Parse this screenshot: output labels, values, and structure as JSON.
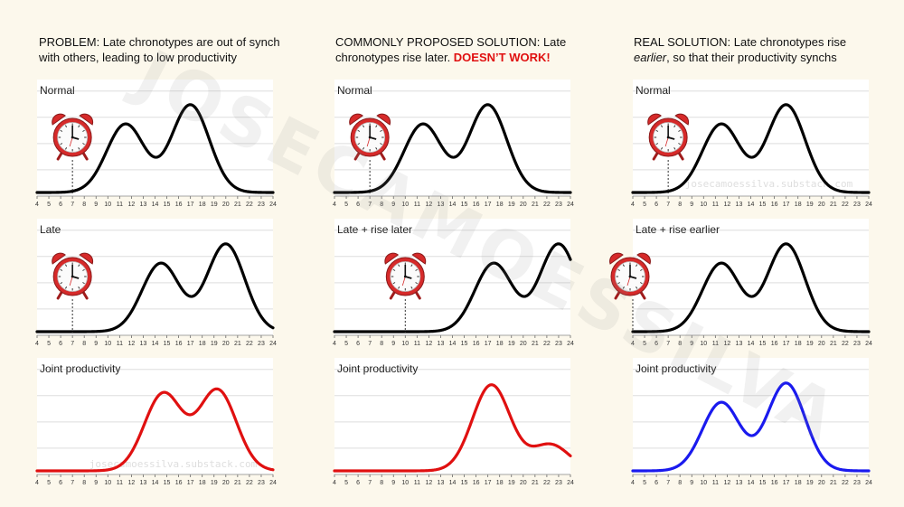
{
  "columns": [
    {
      "title_parts": [
        {
          "text": "PROBLEM: Late chronotypes are out of synch with others, leading to low productivity",
          "style": "normal"
        }
      ]
    },
    {
      "title_parts": [
        {
          "text": "COMMONLY PROPOSED SOLUTION: Late chronotypes rise later. ",
          "style": "normal"
        },
        {
          "text": "DOESN’T WORK!",
          "style": "red-bold"
        }
      ]
    },
    {
      "title_parts": [
        {
          "text": "REAL SOLUTION: Late chronotypes rise ",
          "style": "normal"
        },
        {
          "text": "earlier",
          "style": "italic"
        },
        {
          "text": ", so that their productivity synchs",
          "style": "normal"
        }
      ]
    }
  ],
  "watermark_diagonal": "JOSECAMOESSILVA",
  "watermark_small": "josecamoessilva.substack.com",
  "colors": {
    "black_curve": "#000000",
    "red_curve": "#e01010",
    "blue_curve": "#1a1aee",
    "grid": "#dddddd",
    "alarm": "#d62a2a"
  },
  "chart_data": [
    {
      "type": "line",
      "title": "Normal",
      "column": 0,
      "row": 0,
      "x_ticks": [
        4,
        5,
        6,
        7,
        8,
        9,
        10,
        11,
        12,
        13,
        14,
        15,
        16,
        17,
        18,
        19,
        20,
        21,
        22,
        23,
        24
      ],
      "xlim": [
        4,
        24
      ],
      "ylim": [
        0,
        1
      ],
      "series": [
        {
          "color": "#000000",
          "peaks": [
            {
              "center": 11.5,
              "height": 0.78
            },
            {
              "center": 17,
              "height": 1.0
            }
          ],
          "width": 1.6
        }
      ],
      "alarm_x": 7,
      "watermark": false
    },
    {
      "type": "line",
      "title": "Late",
      "column": 0,
      "row": 1,
      "x_ticks": [
        4,
        5,
        6,
        7,
        8,
        9,
        10,
        11,
        12,
        13,
        14,
        15,
        16,
        17,
        18,
        19,
        20,
        21,
        22,
        23,
        24
      ],
      "xlim": [
        4,
        24
      ],
      "ylim": [
        0,
        1
      ],
      "series": [
        {
          "color": "#000000",
          "peaks": [
            {
              "center": 14.5,
              "height": 0.78
            },
            {
              "center": 20,
              "height": 1.0
            }
          ],
          "width": 1.6
        }
      ],
      "alarm_x": 7,
      "watermark": false
    },
    {
      "type": "line",
      "title": "Joint productivity",
      "column": 0,
      "row": 2,
      "x_ticks": [
        4,
        5,
        6,
        7,
        8,
        9,
        10,
        11,
        12,
        13,
        14,
        15,
        16,
        17,
        18,
        19,
        20,
        21,
        22,
        23,
        24
      ],
      "xlim": [
        4,
        24
      ],
      "ylim": [
        0,
        1
      ],
      "series": [
        {
          "color": "#e01010",
          "peaks": [
            {
              "center": 14.7,
              "height": 0.88
            },
            {
              "center": 19.3,
              "height": 0.92
            }
          ],
          "width": 1.6
        }
      ],
      "watermark": true
    },
    {
      "type": "line",
      "title": "Normal",
      "column": 1,
      "row": 0,
      "x_ticks": [
        4,
        5,
        6,
        7,
        8,
        9,
        10,
        11,
        12,
        13,
        14,
        15,
        16,
        17,
        18,
        19,
        20,
        21,
        22,
        23,
        24
      ],
      "xlim": [
        4,
        24
      ],
      "ylim": [
        0,
        1
      ],
      "series": [
        {
          "color": "#000000",
          "peaks": [
            {
              "center": 11.5,
              "height": 0.78
            },
            {
              "center": 17,
              "height": 1.0
            }
          ],
          "width": 1.6
        }
      ],
      "alarm_x": 7,
      "watermark": false
    },
    {
      "type": "line",
      "title": "Late + rise later",
      "column": 1,
      "row": 1,
      "x_ticks": [
        4,
        5,
        6,
        7,
        8,
        9,
        10,
        11,
        12,
        13,
        14,
        15,
        16,
        17,
        18,
        19,
        20,
        21,
        22,
        23,
        24
      ],
      "xlim": [
        4,
        24
      ],
      "ylim": [
        0,
        1
      ],
      "series": [
        {
          "color": "#000000",
          "peaks": [
            {
              "center": 17.5,
              "height": 0.78
            },
            {
              "center": 23,
              "height": 1.0
            }
          ],
          "width": 1.6
        }
      ],
      "alarm_x": 10,
      "watermark": false
    },
    {
      "type": "line",
      "title": "Joint productivity",
      "column": 1,
      "row": 2,
      "x_ticks": [
        4,
        5,
        6,
        7,
        8,
        9,
        10,
        11,
        12,
        13,
        14,
        15,
        16,
        17,
        18,
        19,
        20,
        21,
        22,
        23,
        24
      ],
      "xlim": [
        4,
        24
      ],
      "ylim": [
        0,
        1
      ],
      "series": [
        {
          "color": "#e01010",
          "peaks": [
            {
              "center": 17.3,
              "height": 0.98
            },
            {
              "center": 22.3,
              "height": 0.3
            }
          ],
          "width": 1.6
        }
      ],
      "watermark": false
    },
    {
      "type": "line",
      "title": "Normal",
      "column": 2,
      "row": 0,
      "x_ticks": [
        4,
        5,
        6,
        7,
        8,
        9,
        10,
        11,
        12,
        13,
        14,
        15,
        16,
        17,
        18,
        19,
        20,
        21,
        22,
        23,
        24
      ],
      "xlim": [
        4,
        24
      ],
      "ylim": [
        0,
        1
      ],
      "series": [
        {
          "color": "#000000",
          "peaks": [
            {
              "center": 11.5,
              "height": 0.78
            },
            {
              "center": 17,
              "height": 1.0
            }
          ],
          "width": 1.6
        }
      ],
      "alarm_x": 7,
      "watermark": true
    },
    {
      "type": "line",
      "title": "Late + rise earlier",
      "column": 2,
      "row": 1,
      "x_ticks": [
        4,
        5,
        6,
        7,
        8,
        9,
        10,
        11,
        12,
        13,
        14,
        15,
        16,
        17,
        18,
        19,
        20,
        21,
        22,
        23,
        24
      ],
      "xlim": [
        4,
        24
      ],
      "ylim": [
        0,
        1
      ],
      "series": [
        {
          "color": "#000000",
          "peaks": [
            {
              "center": 11.5,
              "height": 0.78
            },
            {
              "center": 17,
              "height": 1.0
            }
          ],
          "width": 1.6
        }
      ],
      "alarm_x": 4,
      "watermark": false
    },
    {
      "type": "line",
      "title": "Joint productivity",
      "column": 2,
      "row": 2,
      "x_ticks": [
        4,
        5,
        6,
        7,
        8,
        9,
        10,
        11,
        12,
        13,
        14,
        15,
        16,
        17,
        18,
        19,
        20,
        21,
        22,
        23,
        24
      ],
      "xlim": [
        4,
        24
      ],
      "ylim": [
        0,
        1
      ],
      "series": [
        {
          "color": "#1a1aee",
          "peaks": [
            {
              "center": 11.5,
              "height": 0.78
            },
            {
              "center": 17,
              "height": 1.0
            }
          ],
          "width": 1.6
        }
      ],
      "watermark": false
    }
  ]
}
